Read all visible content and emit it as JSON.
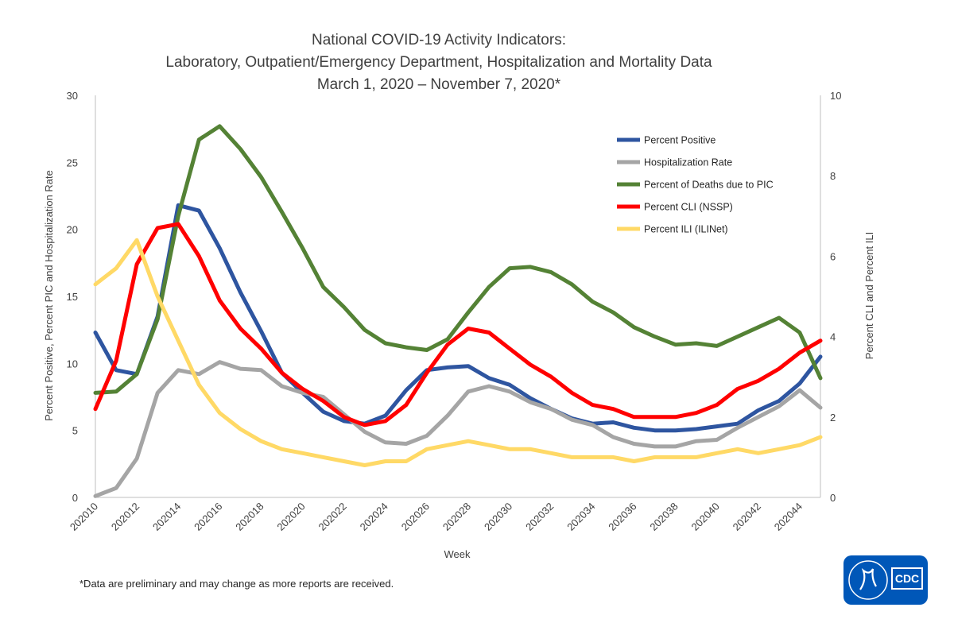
{
  "chart_data": {
    "type": "line",
    "title_lines": [
      "National COVID-19 Activity Indicators:",
      "Laboratory, Outpatient/Emergency Department, Hospitalization and Mortality Data",
      "March 1, 2020 – November 7, 2020*"
    ],
    "xlabel": "Week",
    "ylabel_left": "Percent Positive, Percent PIC and Hospitalization Rate",
    "ylabel_right": "Percent CLI and Percent ILI",
    "ylim_left": [
      0,
      30
    ],
    "yticks_left": [
      0,
      5,
      10,
      15,
      20,
      25,
      30
    ],
    "ylim_right": [
      0,
      10
    ],
    "yticks_right": [
      0,
      2,
      4,
      6,
      8,
      10
    ],
    "x": [
      "202010",
      "202011",
      "202012",
      "202013",
      "202014",
      "202015",
      "202016",
      "202017",
      "202018",
      "202019",
      "202020",
      "202021",
      "202022",
      "202023",
      "202024",
      "202025",
      "202026",
      "202027",
      "202028",
      "202029",
      "202030",
      "202031",
      "202032",
      "202033",
      "202034",
      "202035",
      "202036",
      "202037",
      "202038",
      "202039",
      "202040",
      "202041",
      "202042",
      "202043",
      "202044",
      "202045"
    ],
    "xtick_labels": [
      "202010",
      "202012",
      "202014",
      "202016",
      "202018",
      "202020",
      "202022",
      "202024",
      "202026",
      "202028",
      "202030",
      "202032",
      "202034",
      "202036",
      "202038",
      "202040",
      "202042",
      "202044"
    ],
    "grid": false,
    "legend_position": "top-right",
    "series": [
      {
        "name": "Percent Positive",
        "axis": "left",
        "color": "#2e55a0",
        "values": [
          12.3,
          9.5,
          9.2,
          13.5,
          21.8,
          21.4,
          18.6,
          15.3,
          12.4,
          9.3,
          7.8,
          6.4,
          5.7,
          5.5,
          6.1,
          8.0,
          9.5,
          9.7,
          9.8,
          8.9,
          8.4,
          7.4,
          6.6,
          5.9,
          5.5,
          5.6,
          5.2,
          5.0,
          5.0,
          5.1,
          5.3,
          5.5,
          6.5,
          7.2,
          8.5,
          10.5
        ]
      },
      {
        "name": "Hospitalization Rate",
        "axis": "left",
        "color": "#a5a5a5",
        "values": [
          0.1,
          0.7,
          2.9,
          7.8,
          9.5,
          9.2,
          10.1,
          9.6,
          9.5,
          8.3,
          7.8,
          7.5,
          6.2,
          4.9,
          4.1,
          4.0,
          4.6,
          6.1,
          7.9,
          8.3,
          7.9,
          7.1,
          6.6,
          5.8,
          5.4,
          4.5,
          4.0,
          3.8,
          3.8,
          4.2,
          4.3,
          5.2,
          6.0,
          6.8,
          8.0,
          6.7
        ]
      },
      {
        "name": "Percent of Deaths due to PIC",
        "axis": "left",
        "color": "#548235",
        "values": [
          7.8,
          7.9,
          9.2,
          13.3,
          21.0,
          26.7,
          27.7,
          26.0,
          23.9,
          21.3,
          18.6,
          15.7,
          14.2,
          12.5,
          11.5,
          11.2,
          11.0,
          11.8,
          13.8,
          15.7,
          17.1,
          17.2,
          16.8,
          15.9,
          14.6,
          13.8,
          12.7,
          12.0,
          11.4,
          11.5,
          11.3,
          12.0,
          12.7,
          13.4,
          12.3,
          8.9
        ]
      },
      {
        "name": "Percent CLI (NSSP)",
        "axis": "right",
        "color": "#ff0000",
        "values": [
          2.2,
          3.4,
          5.8,
          6.7,
          6.8,
          6.0,
          4.9,
          4.2,
          3.7,
          3.1,
          2.7,
          2.4,
          2.0,
          1.8,
          1.9,
          2.3,
          3.1,
          3.8,
          4.2,
          4.1,
          3.7,
          3.3,
          3.0,
          2.6,
          2.3,
          2.2,
          2.0,
          2.0,
          2.0,
          2.1,
          2.3,
          2.7,
          2.9,
          3.2,
          3.6,
          3.9
        ]
      },
      {
        "name": "Percent ILI (ILINet)",
        "axis": "right",
        "color": "#ffd966",
        "values": [
          5.3,
          5.7,
          6.4,
          5.0,
          3.9,
          2.8,
          2.1,
          1.7,
          1.4,
          1.2,
          1.1,
          1.0,
          0.9,
          0.8,
          0.9,
          0.9,
          1.2,
          1.3,
          1.4,
          1.3,
          1.2,
          1.2,
          1.1,
          1.0,
          1.0,
          1.0,
          0.9,
          1.0,
          1.0,
          1.0,
          1.1,
          1.2,
          1.1,
          1.2,
          1.3,
          1.5
        ]
      }
    ]
  },
  "footnote": "*Data are preliminary and may change as more reports are received.",
  "logo": {
    "label": "CDC",
    "bg": "#0057b8"
  }
}
